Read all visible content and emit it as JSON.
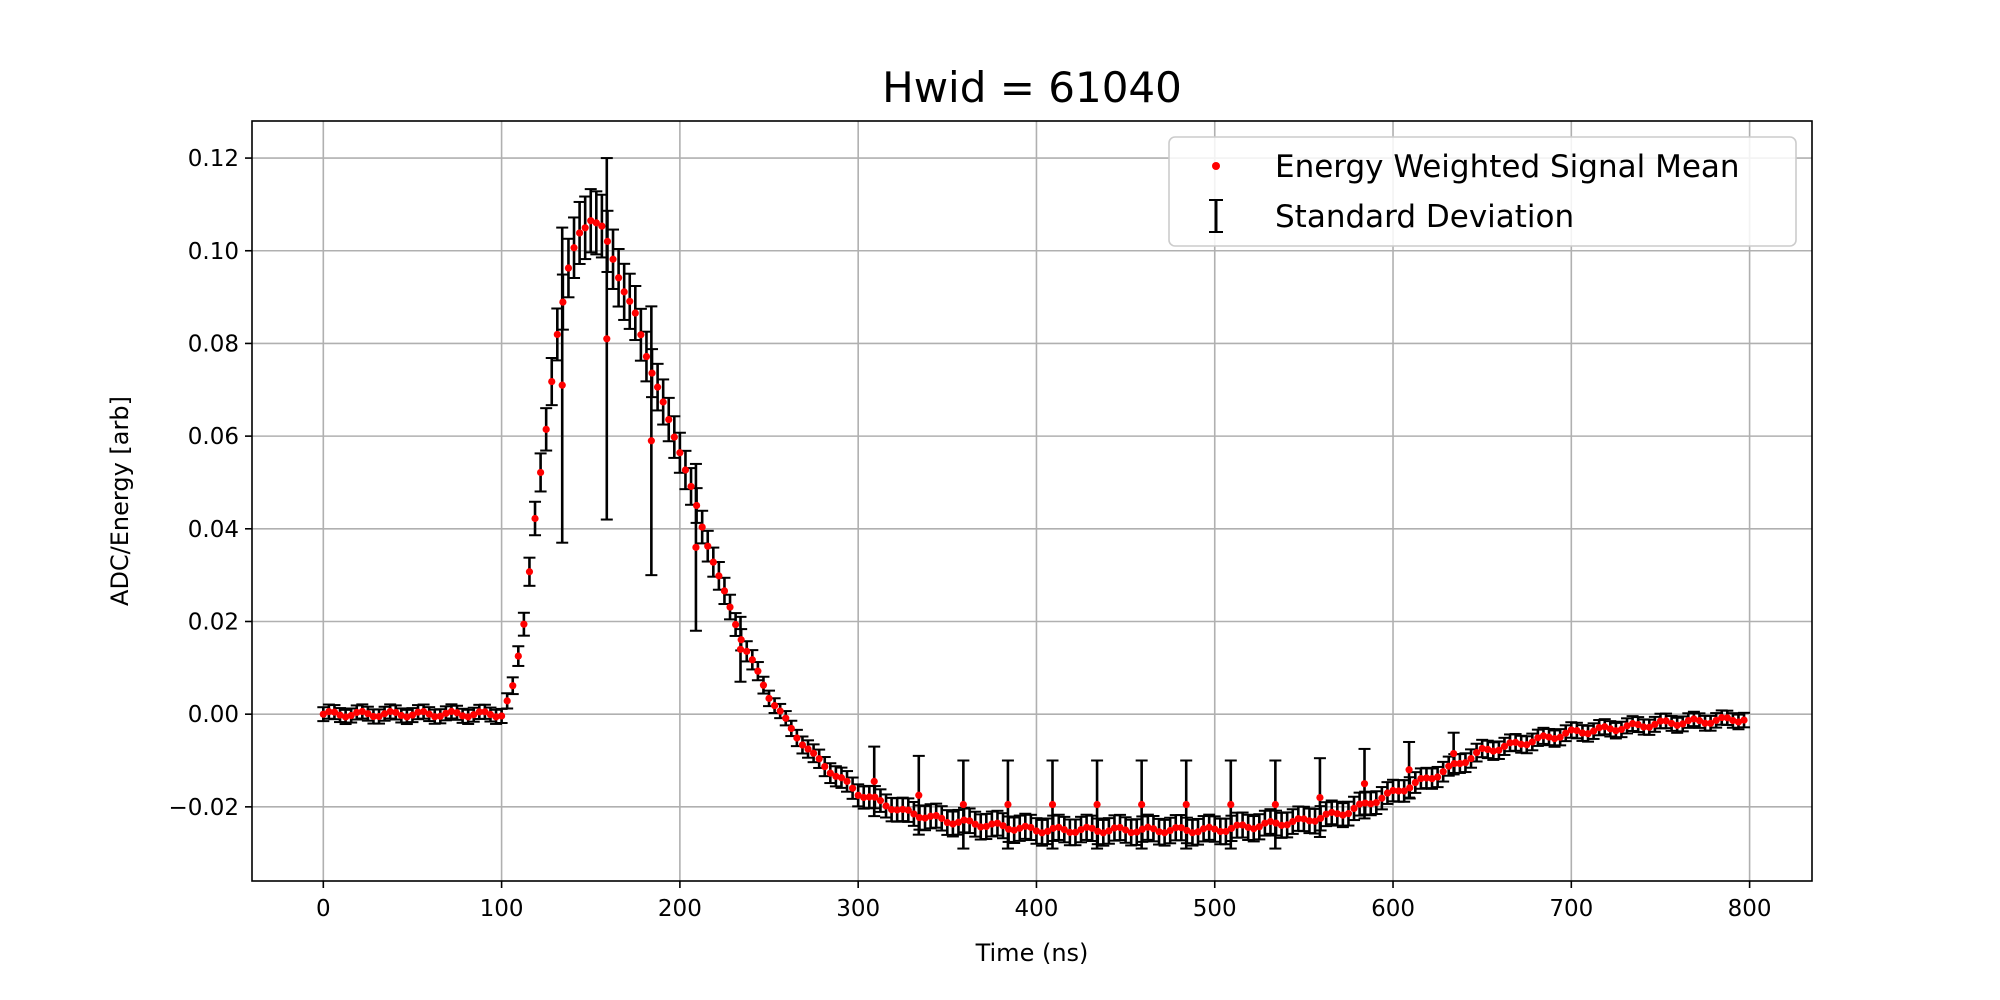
{
  "chart_data": {
    "type": "scatter",
    "title": "Hwid = 61040",
    "xlabel": "Time (ns)",
    "ylabel": "ADC/Energy [arb]",
    "xlim": [
      -40,
      835
    ],
    "ylim": [
      -0.036,
      0.128
    ],
    "xticks": [
      0,
      100,
      200,
      300,
      400,
      500,
      600,
      700,
      800
    ],
    "yticks": [
      -0.02,
      0.0,
      0.02,
      0.04,
      0.06,
      0.08,
      0.1,
      0.12
    ],
    "xtick_labels": [
      "0",
      "100",
      "200",
      "300",
      "400",
      "500",
      "600",
      "700",
      "800"
    ],
    "ytick_labels": [
      "−0.02",
      "0.00",
      "0.02",
      "0.04",
      "0.06",
      "0.08",
      "0.10",
      "0.12"
    ],
    "grid": true,
    "legend_position": "top-right",
    "series": [
      {
        "name": "Energy Weighted Signal Mean",
        "kind": "points",
        "color": "#ff0000"
      },
      {
        "name": "Standard Deviation",
        "kind": "errorbars",
        "color": "#000000"
      }
    ],
    "point_step_ns": 3.125,
    "keypoints": {
      "x": [
        0,
        100,
        106,
        112,
        118,
        125,
        131,
        138,
        144,
        150,
        156,
        162,
        168,
        175,
        181,
        187,
        193,
        200,
        212,
        225,
        237,
        250,
        262,
        275,
        287,
        300,
        325,
        350,
        375,
        400,
        450,
        500,
        550,
        575,
        600,
        625,
        650,
        675,
        700,
        725,
        750,
        775,
        797
      ],
      "y": [
        0.0,
        0.0,
        0.005,
        0.018,
        0.04,
        0.061,
        0.082,
        0.097,
        0.104,
        0.107,
        0.105,
        0.099,
        0.092,
        0.086,
        0.078,
        0.071,
        0.064,
        0.057,
        0.041,
        0.026,
        0.014,
        0.004,
        -0.003,
        -0.009,
        -0.013,
        -0.017,
        -0.021,
        -0.023,
        -0.024,
        -0.025,
        -0.025,
        -0.025,
        -0.023,
        -0.021,
        -0.017,
        -0.013,
        -0.008,
        -0.006,
        -0.004,
        -0.003,
        -0.002,
        -0.0015,
        -0.001
      ]
    },
    "outliers": [
      {
        "x": 134,
        "y": 0.071,
        "err": 0.034
      },
      {
        "x": 159,
        "y": 0.081,
        "err": 0.039
      },
      {
        "x": 184,
        "y": 0.059,
        "err": 0.029
      },
      {
        "x": 209,
        "y": 0.036,
        "err": 0.018
      },
      {
        "x": 234,
        "y": 0.014,
        "err": 0.007
      },
      {
        "x": 309,
        "y": -0.0145,
        "err": 0.0075
      },
      {
        "x": 334,
        "y": -0.0175,
        "err": 0.0085
      },
      {
        "x": 359,
        "y": -0.0195,
        "err": 0.0095
      },
      {
        "x": 384,
        "y": -0.0195,
        "err": 0.0095
      },
      {
        "x": 409,
        "y": -0.0195,
        "err": 0.0095
      },
      {
        "x": 434,
        "y": -0.0195,
        "err": 0.0095
      },
      {
        "x": 459,
        "y": -0.0195,
        "err": 0.0095
      },
      {
        "x": 484,
        "y": -0.0195,
        "err": 0.0095
      },
      {
        "x": 509,
        "y": -0.0195,
        "err": 0.0095
      },
      {
        "x": 534,
        "y": -0.0195,
        "err": 0.0095
      },
      {
        "x": 559,
        "y": -0.018,
        "err": 0.0085
      },
      {
        "x": 584,
        "y": -0.015,
        "err": 0.0075
      },
      {
        "x": 609,
        "y": -0.012,
        "err": 0.006
      },
      {
        "x": 634,
        "y": -0.0085,
        "err": 0.0045
      }
    ]
  }
}
